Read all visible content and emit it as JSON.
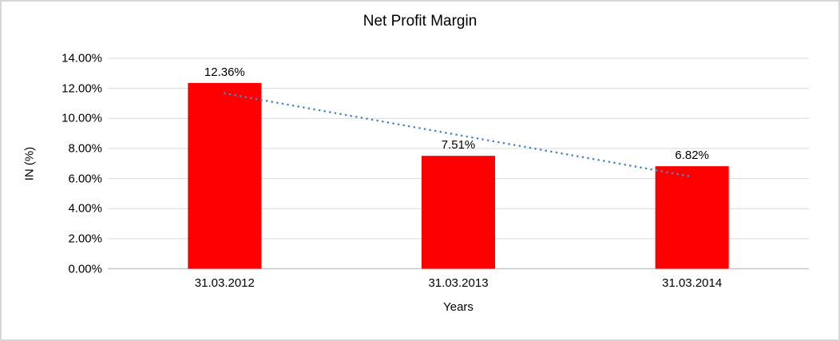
{
  "chart_data": {
    "type": "bar",
    "title": "Net Profit Margin",
    "xlabel": "Years",
    "ylabel": "IN (%)",
    "categories": [
      "31.03.2012",
      "31.03.2013",
      "31.03.2014"
    ],
    "values": [
      12.36,
      7.51,
      6.82
    ],
    "value_labels": [
      "12.36%",
      "7.51%",
      "6.82%"
    ],
    "ytick_values": [
      0,
      2,
      4,
      6,
      8,
      10,
      12,
      14
    ],
    "ytick_labels": [
      "0.00%",
      "2.00%",
      "4.00%",
      "6.00%",
      "8.00%",
      "10.00%",
      "12.00%",
      "14.00%"
    ],
    "ylim": [
      0,
      14
    ],
    "grid": true,
    "legend_position": "none",
    "bar_color": "#ff0000",
    "trendline": {
      "type": "linear",
      "style": "dotted",
      "color": "#4e87c6"
    }
  }
}
